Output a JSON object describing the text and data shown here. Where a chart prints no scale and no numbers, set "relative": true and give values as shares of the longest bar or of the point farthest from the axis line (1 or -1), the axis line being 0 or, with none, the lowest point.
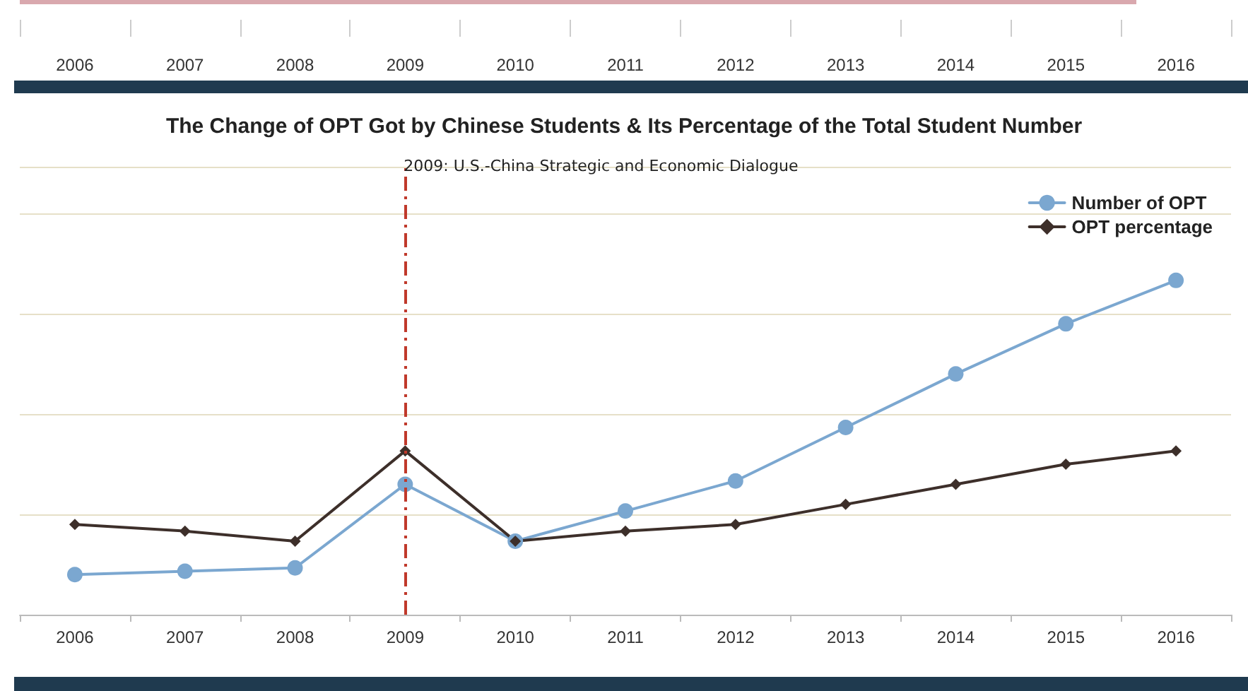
{
  "chart_data": {
    "type": "line",
    "title": "The Change of OPT Got by Chinese Students & Its Percentage of the Total Student Number",
    "categories": [
      "2006",
      "2007",
      "2008",
      "2009",
      "2010",
      "2011",
      "2012",
      "2013",
      "2014",
      "2015",
      "2016"
    ],
    "relative": true,
    "series": [
      {
        "name": "Number of OPT",
        "color": "#7ba7d0",
        "marker": "circle",
        "values": [
          0.12,
          0.13,
          0.14,
          0.39,
          0.22,
          0.31,
          0.4,
          0.56,
          0.72,
          0.87,
          1
        ]
      },
      {
        "name": "OPT percentage",
        "color": "#3d2f2a",
        "marker": "diamond",
        "values": [
          0.27,
          0.25,
          0.22,
          0.49,
          0.22,
          0.25,
          0.27,
          0.33,
          0.39,
          0.45,
          0.49
        ]
      }
    ],
    "ref_lines": [
      {
        "axis": "x",
        "value": "2009",
        "label": "2009: U.S.-China Strategic and Economic Dialogue",
        "color": "#c0392b",
        "line_style": "dashed"
      }
    ],
    "grid": "y",
    "legend": "top right",
    "line_style": "solid"
  }
}
